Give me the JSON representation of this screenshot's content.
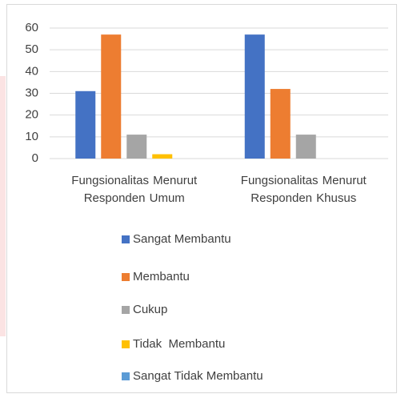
{
  "chart_data": {
    "type": "bar",
    "categories": [
      "Fungsionalitas Menurut Responden Umum",
      "Fungsionalitas Menurut Responden Khusus"
    ],
    "series": [
      {
        "name": "Sangat Membantu",
        "color": "#4472c4",
        "values": [
          31,
          57
        ]
      },
      {
        "name": "Membantu",
        "color": "#ed7d31",
        "values": [
          57,
          32
        ]
      },
      {
        "name": "Cukup",
        "color": "#a5a5a5",
        "values": [
          11,
          11
        ]
      },
      {
        "name": "Tidak  Membantu",
        "color": "#ffc000",
        "values": [
          2,
          0
        ]
      },
      {
        "name": "Sangat Tidak Membantu",
        "color": "#5b9bd5",
        "values": [
          0,
          0
        ]
      }
    ],
    "ylim": [
      0,
      60
    ],
    "yticks": [
      0,
      10,
      20,
      30,
      40,
      50,
      60
    ],
    "grid": true,
    "legend": "bottom"
  }
}
